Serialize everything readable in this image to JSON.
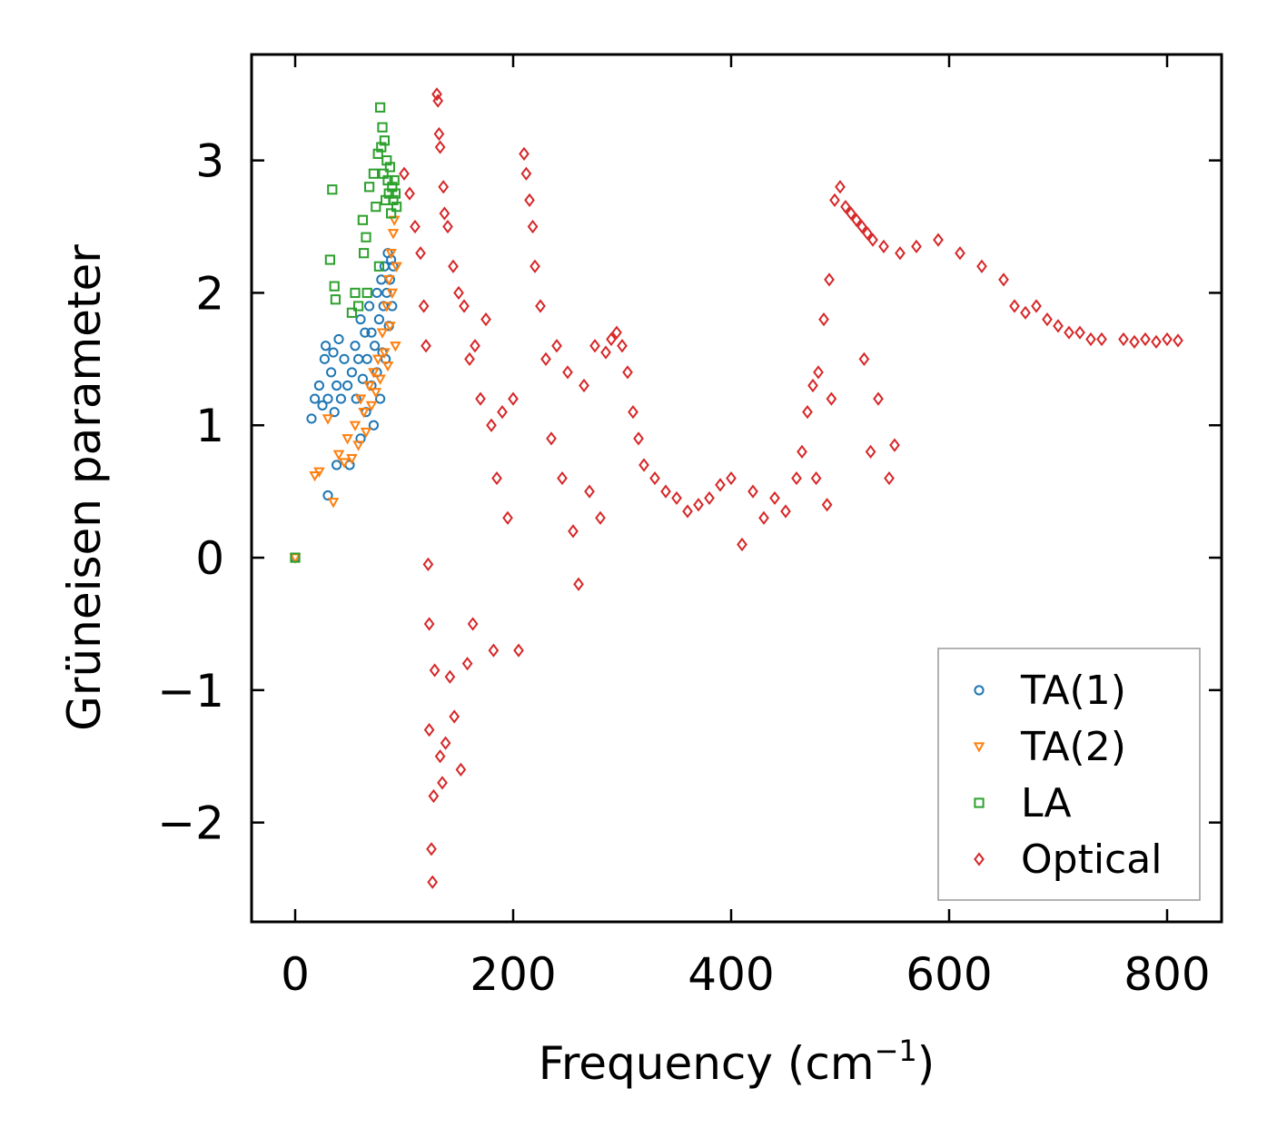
{
  "chart_data": {
    "type": "scatter",
    "title": "",
    "xlabel": "Frequency (cm",
    "xlabel_sup": "−1",
    "xlabel_suffix": ")",
    "ylabel": "Grüneisen parameter",
    "xlim": [
      -40,
      850
    ],
    "ylim": [
      -2.75,
      3.8
    ],
    "xticks": [
      0,
      200,
      400,
      600,
      800
    ],
    "yticks": [
      -2,
      -1,
      0,
      1,
      2,
      3
    ],
    "xtick_labels": [
      "0",
      "200",
      "400",
      "600",
      "800"
    ],
    "ytick_labels": [
      "−2",
      "−1",
      "0",
      "1",
      "2",
      "3"
    ],
    "legend_position": "bottom-right",
    "series": [
      {
        "name": "TA(1)",
        "marker": "circle",
        "color": "#1f77b4",
        "points": [
          [
            0,
            0
          ],
          [
            15,
            1.05
          ],
          [
            18,
            1.2
          ],
          [
            22,
            1.3
          ],
          [
            25,
            1.15
          ],
          [
            27,
            1.5
          ],
          [
            28,
            1.6
          ],
          [
            30,
            0.47
          ],
          [
            30,
            1.2
          ],
          [
            33,
            1.4
          ],
          [
            35,
            1.55
          ],
          [
            36,
            1.1
          ],
          [
            38,
            0.7
          ],
          [
            38,
            1.3
          ],
          [
            40,
            1.65
          ],
          [
            42,
            1.2
          ],
          [
            45,
            1.5
          ],
          [
            48,
            1.3
          ],
          [
            50,
            0.7
          ],
          [
            52,
            1.4
          ],
          [
            55,
            1.6
          ],
          [
            56,
            1.2
          ],
          [
            58,
            1.5
          ],
          [
            60,
            0.9
          ],
          [
            60,
            1.8
          ],
          [
            62,
            1.35
          ],
          [
            64,
            1.7
          ],
          [
            65,
            1.1
          ],
          [
            66,
            1.5
          ],
          [
            68,
            1.9
          ],
          [
            70,
            1.3
          ],
          [
            70,
            1.7
          ],
          [
            72,
            1.0
          ],
          [
            73,
            1.6
          ],
          [
            75,
            2.0
          ],
          [
            75,
            1.4
          ],
          [
            77,
            1.8
          ],
          [
            78,
            1.2
          ],
          [
            79,
            2.1
          ],
          [
            80,
            1.55
          ],
          [
            81,
            1.9
          ],
          [
            82,
            2.2
          ],
          [
            83,
            1.5
          ],
          [
            84,
            2.0
          ],
          [
            85,
            2.3
          ],
          [
            86,
            1.75
          ],
          [
            87,
            2.1
          ],
          [
            88,
            2.25
          ],
          [
            89,
            1.9
          ],
          [
            90,
            2.2
          ]
        ]
      },
      {
        "name": "TA(2)",
        "marker": "triangle",
        "color": "#ff7f0e",
        "points": [
          [
            0,
            0
          ],
          [
            18,
            0.62
          ],
          [
            22,
            0.65
          ],
          [
            30,
            1.05
          ],
          [
            35,
            0.42
          ],
          [
            40,
            0.78
          ],
          [
            45,
            0.72
          ],
          [
            48,
            0.9
          ],
          [
            52,
            0.75
          ],
          [
            55,
            1.0
          ],
          [
            58,
            0.85
          ],
          [
            60,
            1.2
          ],
          [
            63,
            1.1
          ],
          [
            65,
            0.95
          ],
          [
            68,
            1.3
          ],
          [
            70,
            1.15
          ],
          [
            72,
            1.4
          ],
          [
            74,
            1.25
          ],
          [
            76,
            1.5
          ],
          [
            78,
            1.35
          ],
          [
            80,
            1.7
          ],
          [
            82,
            1.55
          ],
          [
            84,
            1.9
          ],
          [
            85,
            1.45
          ],
          [
            86,
            2.1
          ],
          [
            87,
            1.75
          ],
          [
            88,
            2.3
          ],
          [
            89,
            2.0
          ],
          [
            90,
            2.45
          ],
          [
            91,
            2.55
          ],
          [
            92,
            1.6
          ],
          [
            93,
            2.2
          ]
        ]
      },
      {
        "name": "LA",
        "marker": "square",
        "color": "#2ca02c",
        "points": [
          [
            0,
            0
          ],
          [
            32,
            2.25
          ],
          [
            34,
            2.78
          ],
          [
            36,
            2.05
          ],
          [
            37,
            1.95
          ],
          [
            52,
            1.85
          ],
          [
            55,
            2.0
          ],
          [
            58,
            1.9
          ],
          [
            62,
            2.55
          ],
          [
            63,
            2.3
          ],
          [
            65,
            2.42
          ],
          [
            66,
            2.0
          ],
          [
            68,
            2.8
          ],
          [
            72,
            2.9
          ],
          [
            74,
            2.65
          ],
          [
            76,
            3.05
          ],
          [
            77,
            2.2
          ],
          [
            78,
            3.4
          ],
          [
            79,
            3.1
          ],
          [
            80,
            3.25
          ],
          [
            81,
            2.9
          ],
          [
            82,
            3.15
          ],
          [
            83,
            2.7
          ],
          [
            84,
            3.0
          ],
          [
            85,
            2.85
          ],
          [
            86,
            2.75
          ],
          [
            87,
            2.95
          ],
          [
            88,
            2.6
          ],
          [
            89,
            2.8
          ],
          [
            90,
            2.7
          ],
          [
            91,
            2.85
          ],
          [
            92,
            2.75
          ],
          [
            93,
            2.65
          ]
        ]
      },
      {
        "name": "Optical",
        "marker": "diamond",
        "color": "#d62728",
        "points": [
          [
            100,
            2.9
          ],
          [
            105,
            2.75
          ],
          [
            110,
            2.5
          ],
          [
            115,
            2.3
          ],
          [
            118,
            1.9
          ],
          [
            120,
            1.6
          ],
          [
            122,
            -0.05
          ],
          [
            123,
            -0.5
          ],
          [
            123,
            -1.3
          ],
          [
            125,
            -2.2
          ],
          [
            126,
            -2.45
          ],
          [
            127,
            -1.8
          ],
          [
            128,
            -0.85
          ],
          [
            130,
            3.5
          ],
          [
            131,
            3.45
          ],
          [
            132,
            3.2
          ],
          [
            133,
            3.1
          ],
          [
            133,
            -1.5
          ],
          [
            135,
            -1.7
          ],
          [
            136,
            2.8
          ],
          [
            137,
            2.6
          ],
          [
            138,
            -1.4
          ],
          [
            140,
            2.5
          ],
          [
            142,
            -0.9
          ],
          [
            145,
            2.2
          ],
          [
            146,
            -1.2
          ],
          [
            150,
            2.0
          ],
          [
            152,
            -1.6
          ],
          [
            155,
            1.9
          ],
          [
            158,
            -0.8
          ],
          [
            160,
            1.5
          ],
          [
            163,
            -0.5
          ],
          [
            165,
            1.6
          ],
          [
            170,
            1.2
          ],
          [
            175,
            1.8
          ],
          [
            180,
            1.0
          ],
          [
            182,
            -0.7
          ],
          [
            185,
            0.6
          ],
          [
            190,
            1.1
          ],
          [
            195,
            0.3
          ],
          [
            200,
            1.2
          ],
          [
            205,
            -0.7
          ],
          [
            210,
            3.05
          ],
          [
            212,
            2.9
          ],
          [
            215,
            2.7
          ],
          [
            218,
            2.5
          ],
          [
            220,
            2.2
          ],
          [
            225,
            1.9
          ],
          [
            230,
            1.5
          ],
          [
            235,
            0.9
          ],
          [
            240,
            1.6
          ],
          [
            245,
            0.6
          ],
          [
            250,
            1.4
          ],
          [
            255,
            0.2
          ],
          [
            260,
            -0.2
          ],
          [
            265,
            1.3
          ],
          [
            270,
            0.5
          ],
          [
            275,
            1.6
          ],
          [
            280,
            0.3
          ],
          [
            285,
            1.55
          ],
          [
            290,
            1.65
          ],
          [
            295,
            1.7
          ],
          [
            300,
            1.6
          ],
          [
            305,
            1.4
          ],
          [
            310,
            1.1
          ],
          [
            315,
            0.9
          ],
          [
            320,
            0.7
          ],
          [
            330,
            0.6
          ],
          [
            340,
            0.5
          ],
          [
            350,
            0.45
          ],
          [
            360,
            0.35
          ],
          [
            370,
            0.4
          ],
          [
            380,
            0.45
          ],
          [
            390,
            0.55
          ],
          [
            400,
            0.6
          ],
          [
            410,
            0.1
          ],
          [
            420,
            0.5
          ],
          [
            430,
            0.3
          ],
          [
            440,
            0.45
          ],
          [
            450,
            0.35
          ],
          [
            460,
            0.6
          ],
          [
            465,
            0.8
          ],
          [
            470,
            1.1
          ],
          [
            475,
            1.3
          ],
          [
            478,
            0.6
          ],
          [
            480,
            1.4
          ],
          [
            485,
            1.8
          ],
          [
            488,
            0.4
          ],
          [
            490,
            2.1
          ],
          [
            492,
            1.2
          ],
          [
            495,
            2.7
          ],
          [
            500,
            2.8
          ],
          [
            505,
            2.65
          ],
          [
            510,
            2.6
          ],
          [
            515,
            2.55
          ],
          [
            520,
            2.5
          ],
          [
            522,
            1.5
          ],
          [
            525,
            2.45
          ],
          [
            528,
            0.8
          ],
          [
            530,
            2.4
          ],
          [
            535,
            1.2
          ],
          [
            540,
            2.35
          ],
          [
            545,
            0.6
          ],
          [
            550,
            0.85
          ],
          [
            555,
            2.3
          ],
          [
            570,
            2.35
          ],
          [
            590,
            2.4
          ],
          [
            610,
            2.3
          ],
          [
            630,
            2.2
          ],
          [
            650,
            2.1
          ],
          [
            660,
            1.9
          ],
          [
            670,
            1.85
          ],
          [
            680,
            1.9
          ],
          [
            690,
            1.8
          ],
          [
            700,
            1.75
          ],
          [
            710,
            1.7
          ],
          [
            720,
            1.7
          ],
          [
            730,
            1.65
          ],
          [
            740,
            1.65
          ],
          [
            760,
            1.65
          ],
          [
            770,
            1.63
          ],
          [
            780,
            1.65
          ],
          [
            790,
            1.63
          ],
          [
            800,
            1.65
          ],
          [
            810,
            1.64
          ]
        ]
      }
    ]
  }
}
